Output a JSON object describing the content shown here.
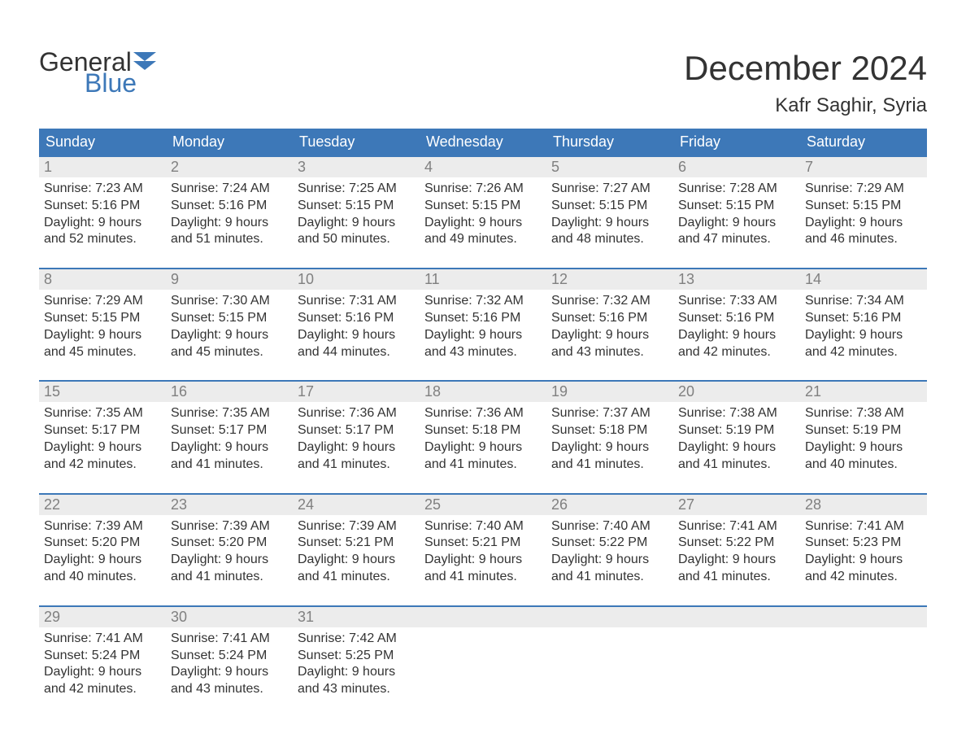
{
  "logo": {
    "line1": "General",
    "line2": "Blue",
    "icon_color": "#3d78b8",
    "text_color_dark": "#333333",
    "text_color_blue": "#3d78b8"
  },
  "header": {
    "month_title": "December 2024",
    "location": "Kafr Saghir, Syria"
  },
  "colors": {
    "header_bg": "#3d78b8",
    "header_text": "#ffffff",
    "daynum_bg": "#ececec",
    "daynum_text": "#808080",
    "body_text": "#333333",
    "week_border": "#3d78b8",
    "page_bg": "#ffffff"
  },
  "typography": {
    "title_fontsize": 42,
    "location_fontsize": 24,
    "weekday_fontsize": 18,
    "daynum_fontsize": 18,
    "body_fontsize": 16
  },
  "weekdays": [
    "Sunday",
    "Monday",
    "Tuesday",
    "Wednesday",
    "Thursday",
    "Friday",
    "Saturday"
  ],
  "days": [
    {
      "n": "1",
      "sunrise": "Sunrise: 7:23 AM",
      "sunset": "Sunset: 5:16 PM",
      "dl1": "Daylight: 9 hours",
      "dl2": "and 52 minutes."
    },
    {
      "n": "2",
      "sunrise": "Sunrise: 7:24 AM",
      "sunset": "Sunset: 5:16 PM",
      "dl1": "Daylight: 9 hours",
      "dl2": "and 51 minutes."
    },
    {
      "n": "3",
      "sunrise": "Sunrise: 7:25 AM",
      "sunset": "Sunset: 5:15 PM",
      "dl1": "Daylight: 9 hours",
      "dl2": "and 50 minutes."
    },
    {
      "n": "4",
      "sunrise": "Sunrise: 7:26 AM",
      "sunset": "Sunset: 5:15 PM",
      "dl1": "Daylight: 9 hours",
      "dl2": "and 49 minutes."
    },
    {
      "n": "5",
      "sunrise": "Sunrise: 7:27 AM",
      "sunset": "Sunset: 5:15 PM",
      "dl1": "Daylight: 9 hours",
      "dl2": "and 48 minutes."
    },
    {
      "n": "6",
      "sunrise": "Sunrise: 7:28 AM",
      "sunset": "Sunset: 5:15 PM",
      "dl1": "Daylight: 9 hours",
      "dl2": "and 47 minutes."
    },
    {
      "n": "7",
      "sunrise": "Sunrise: 7:29 AM",
      "sunset": "Sunset: 5:15 PM",
      "dl1": "Daylight: 9 hours",
      "dl2": "and 46 minutes."
    },
    {
      "n": "8",
      "sunrise": "Sunrise: 7:29 AM",
      "sunset": "Sunset: 5:15 PM",
      "dl1": "Daylight: 9 hours",
      "dl2": "and 45 minutes."
    },
    {
      "n": "9",
      "sunrise": "Sunrise: 7:30 AM",
      "sunset": "Sunset: 5:15 PM",
      "dl1": "Daylight: 9 hours",
      "dl2": "and 45 minutes."
    },
    {
      "n": "10",
      "sunrise": "Sunrise: 7:31 AM",
      "sunset": "Sunset: 5:16 PM",
      "dl1": "Daylight: 9 hours",
      "dl2": "and 44 minutes."
    },
    {
      "n": "11",
      "sunrise": "Sunrise: 7:32 AM",
      "sunset": "Sunset: 5:16 PM",
      "dl1": "Daylight: 9 hours",
      "dl2": "and 43 minutes."
    },
    {
      "n": "12",
      "sunrise": "Sunrise: 7:32 AM",
      "sunset": "Sunset: 5:16 PM",
      "dl1": "Daylight: 9 hours",
      "dl2": "and 43 minutes."
    },
    {
      "n": "13",
      "sunrise": "Sunrise: 7:33 AM",
      "sunset": "Sunset: 5:16 PM",
      "dl1": "Daylight: 9 hours",
      "dl2": "and 42 minutes."
    },
    {
      "n": "14",
      "sunrise": "Sunrise: 7:34 AM",
      "sunset": "Sunset: 5:16 PM",
      "dl1": "Daylight: 9 hours",
      "dl2": "and 42 minutes."
    },
    {
      "n": "15",
      "sunrise": "Sunrise: 7:35 AM",
      "sunset": "Sunset: 5:17 PM",
      "dl1": "Daylight: 9 hours",
      "dl2": "and 42 minutes."
    },
    {
      "n": "16",
      "sunrise": "Sunrise: 7:35 AM",
      "sunset": "Sunset: 5:17 PM",
      "dl1": "Daylight: 9 hours",
      "dl2": "and 41 minutes."
    },
    {
      "n": "17",
      "sunrise": "Sunrise: 7:36 AM",
      "sunset": "Sunset: 5:17 PM",
      "dl1": "Daylight: 9 hours",
      "dl2": "and 41 minutes."
    },
    {
      "n": "18",
      "sunrise": "Sunrise: 7:36 AM",
      "sunset": "Sunset: 5:18 PM",
      "dl1": "Daylight: 9 hours",
      "dl2": "and 41 minutes."
    },
    {
      "n": "19",
      "sunrise": "Sunrise: 7:37 AM",
      "sunset": "Sunset: 5:18 PM",
      "dl1": "Daylight: 9 hours",
      "dl2": "and 41 minutes."
    },
    {
      "n": "20",
      "sunrise": "Sunrise: 7:38 AM",
      "sunset": "Sunset: 5:19 PM",
      "dl1": "Daylight: 9 hours",
      "dl2": "and 41 minutes."
    },
    {
      "n": "21",
      "sunrise": "Sunrise: 7:38 AM",
      "sunset": "Sunset: 5:19 PM",
      "dl1": "Daylight: 9 hours",
      "dl2": "and 40 minutes."
    },
    {
      "n": "22",
      "sunrise": "Sunrise: 7:39 AM",
      "sunset": "Sunset: 5:20 PM",
      "dl1": "Daylight: 9 hours",
      "dl2": "and 40 minutes."
    },
    {
      "n": "23",
      "sunrise": "Sunrise: 7:39 AM",
      "sunset": "Sunset: 5:20 PM",
      "dl1": "Daylight: 9 hours",
      "dl2": "and 41 minutes."
    },
    {
      "n": "24",
      "sunrise": "Sunrise: 7:39 AM",
      "sunset": "Sunset: 5:21 PM",
      "dl1": "Daylight: 9 hours",
      "dl2": "and 41 minutes."
    },
    {
      "n": "25",
      "sunrise": "Sunrise: 7:40 AM",
      "sunset": "Sunset: 5:21 PM",
      "dl1": "Daylight: 9 hours",
      "dl2": "and 41 minutes."
    },
    {
      "n": "26",
      "sunrise": "Sunrise: 7:40 AM",
      "sunset": "Sunset: 5:22 PM",
      "dl1": "Daylight: 9 hours",
      "dl2": "and 41 minutes."
    },
    {
      "n": "27",
      "sunrise": "Sunrise: 7:41 AM",
      "sunset": "Sunset: 5:22 PM",
      "dl1": "Daylight: 9 hours",
      "dl2": "and 41 minutes."
    },
    {
      "n": "28",
      "sunrise": "Sunrise: 7:41 AM",
      "sunset": "Sunset: 5:23 PM",
      "dl1": "Daylight: 9 hours",
      "dl2": "and 42 minutes."
    },
    {
      "n": "29",
      "sunrise": "Sunrise: 7:41 AM",
      "sunset": "Sunset: 5:24 PM",
      "dl1": "Daylight: 9 hours",
      "dl2": "and 42 minutes."
    },
    {
      "n": "30",
      "sunrise": "Sunrise: 7:41 AM",
      "sunset": "Sunset: 5:24 PM",
      "dl1": "Daylight: 9 hours",
      "dl2": "and 43 minutes."
    },
    {
      "n": "31",
      "sunrise": "Sunrise: 7:42 AM",
      "sunset": "Sunset: 5:25 PM",
      "dl1": "Daylight: 9 hours",
      "dl2": "and 43 minutes."
    }
  ]
}
